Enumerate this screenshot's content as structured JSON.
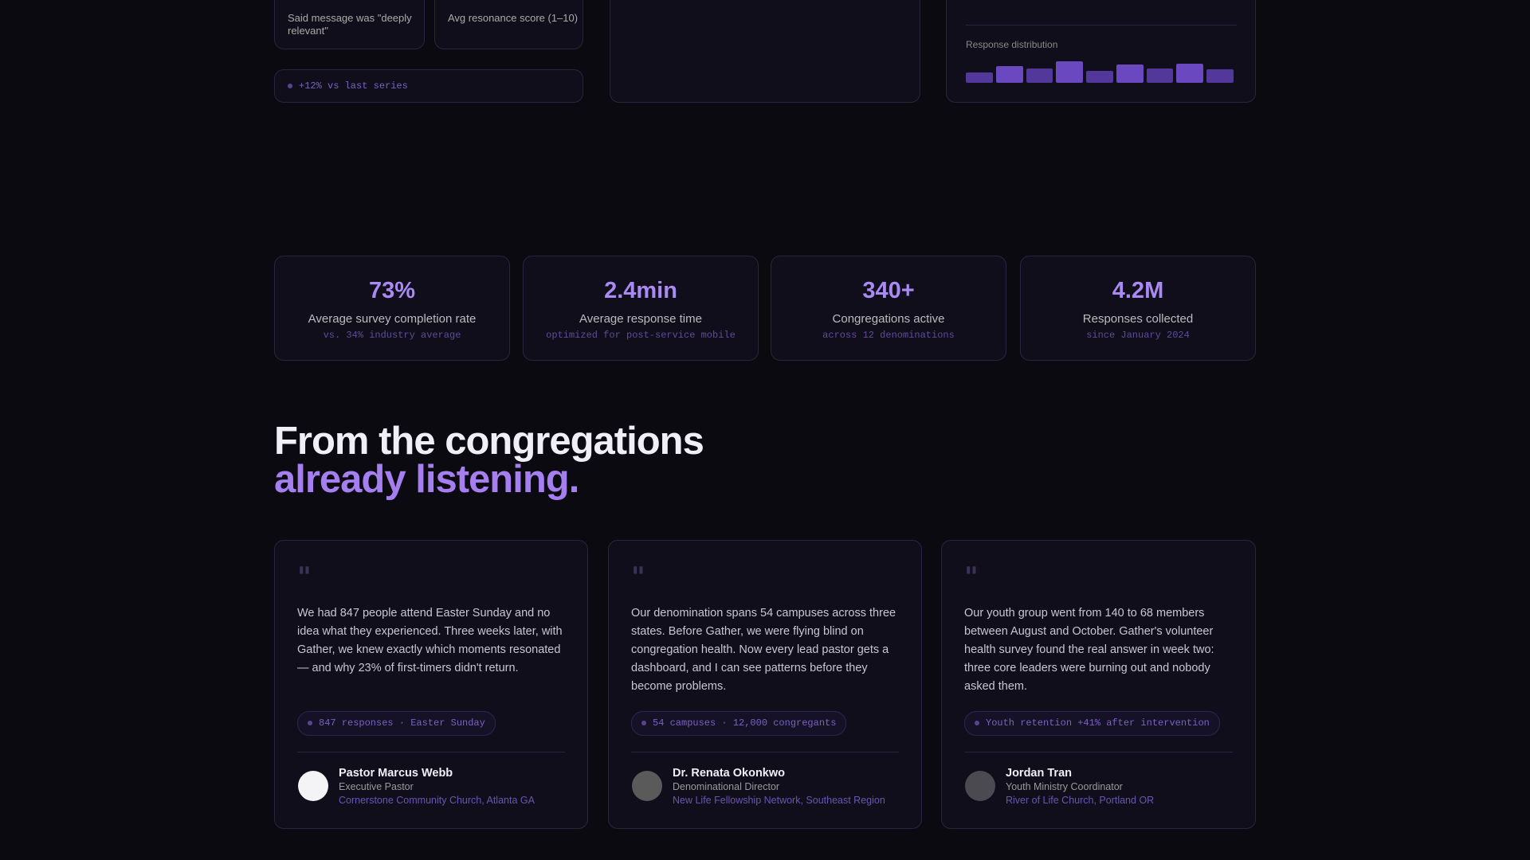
{
  "top_cards": [
    {
      "label": "Said message was \"deeply relevant\""
    },
    {
      "label": "Avg resonance score (1–10)"
    }
  ],
  "trend_pill": "+12% vs last series",
  "response_distribution": {
    "label": "Response distribution",
    "values": [
      10,
      16,
      14,
      21,
      12,
      18,
      14,
      19,
      13
    ]
  },
  "stats": [
    {
      "value": "73%",
      "label": "Average survey completion rate",
      "note": "vs. 34% industry average"
    },
    {
      "value": "2.4min",
      "label": "Average response time",
      "note": "optimized for post-service mobile"
    },
    {
      "value": "340+",
      "label": "Congregations active",
      "note": "across 12 denominations"
    },
    {
      "value": "4.2M",
      "label": "Responses collected",
      "note": "since January 2024"
    }
  ],
  "heading": {
    "line1": "From the congregations",
    "line2": "already listening."
  },
  "testimonials": [
    {
      "quote": "We had 847 people attend Easter Sunday and no idea what they experienced. Three weeks later, with Gather, we knew exactly which moments resonated — and why 23% of first-timers didn't return.",
      "tag": "847 responses · Easter Sunday",
      "name": "Pastor Marcus Webb",
      "role": "Executive Pastor",
      "org": "Cornerstone Community Church, Atlanta GA"
    },
    {
      "quote": "Our denomination spans 54 campuses across three states. Before Gather, we were flying blind on congregation health. Now every lead pastor gets a dashboard, and I can see patterns before they become problems.",
      "tag": "54 campuses · 12,000 congregants",
      "name": "Dr. Renata Okonkwo",
      "role": "Denominational Director",
      "org": "New Life Fellowship Network, Southeast Region"
    },
    {
      "quote": "Our youth group went from 140 to 68 members between August and October. Gather's volunteer health survey found the real answer in week two: three core leaders were burning out and nobody asked them.",
      "tag": "Youth retention +41% after intervention",
      "name": "Jordan Tran",
      "role": "Youth Ministry Coordinator",
      "org": "River of Life Church, Portland OR"
    }
  ]
}
